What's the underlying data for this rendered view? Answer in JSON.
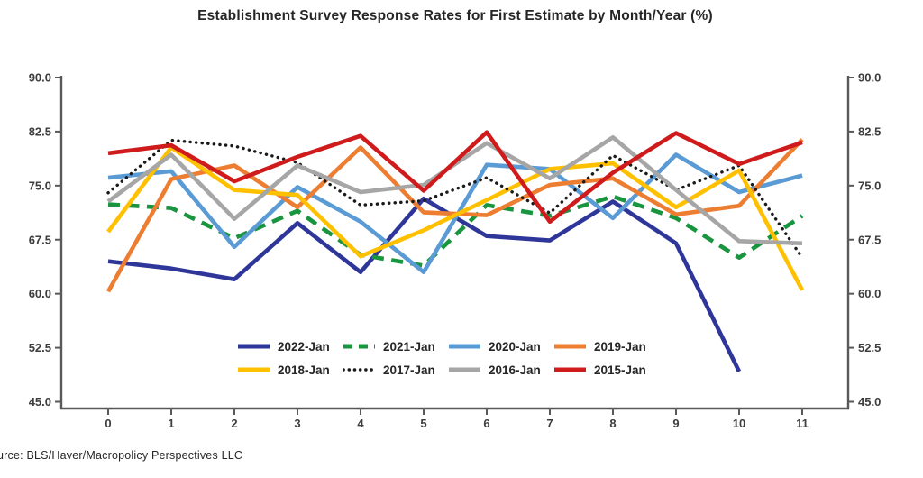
{
  "title": "Establishment Survey Response Rates for First Estimate by Month/Year (%)",
  "source_note": "urce:  BLS/Haver/Macropolicy Perspectives LLC",
  "chart_data": {
    "type": "line",
    "x": [
      0,
      1,
      2,
      3,
      4,
      5,
      6,
      7,
      8,
      9,
      10,
      11
    ],
    "x_tick_labels": [
      "0",
      "1",
      "2",
      "3",
      "4",
      "5",
      "6",
      "7",
      "8",
      "9",
      "10",
      "11"
    ],
    "y_ticks": [
      90.0,
      82.5,
      75.0,
      67.5,
      60.0,
      52.5,
      45.0
    ],
    "y_tick_labels": [
      "90.0",
      "82.5",
      "75.0",
      "67.5",
      "60.0",
      "52.5",
      "45.0"
    ],
    "ylim": [
      45.0,
      90.0
    ],
    "grid": false,
    "legend_position": "bottom-center-inside",
    "axis_color": "#595959",
    "tick_label_color": "#3d3d3d",
    "series": [
      {
        "name": "2022-Jan",
        "color": "#2f3699",
        "style": "solid",
        "values": [
          64.5,
          63.5,
          62.0,
          69.8,
          63.0,
          73.2,
          68.0,
          67.4,
          72.8,
          67.0,
          49.2,
          null
        ]
      },
      {
        "name": "2021-Jan",
        "color": "#18953e",
        "style": "dashed",
        "values": [
          72.4,
          71.9,
          67.7,
          71.5,
          65.4,
          63.9,
          72.3,
          70.8,
          73.5,
          70.5,
          65.0,
          70.8
        ]
      },
      {
        "name": "2020-Jan",
        "color": "#5b9bd5",
        "style": "solid",
        "values": [
          76.1,
          77.0,
          66.5,
          74.8,
          70.0,
          63.0,
          77.9,
          77.3,
          70.5,
          79.3,
          74.1,
          76.4
        ]
      },
      {
        "name": "2019-Jan",
        "color": "#ed7d31",
        "style": "solid",
        "values": [
          60.3,
          75.9,
          77.8,
          72.0,
          80.3,
          71.3,
          70.9,
          75.1,
          76.0,
          71.0,
          72.2,
          81.4
        ]
      },
      {
        "name": "2018-Jan",
        "color": "#ffc000",
        "style": "solid",
        "values": [
          68.6,
          80.3,
          74.4,
          73.7,
          65.2,
          68.8,
          73.0,
          77.3,
          78.1,
          72.0,
          77.1,
          60.5
        ]
      },
      {
        "name": "2017-Jan",
        "color": "#1a1a1a",
        "style": "dotted",
        "values": [
          74.0,
          81.3,
          80.5,
          78.2,
          72.3,
          72.9,
          76.1,
          71.2,
          79.2,
          74.4,
          77.8,
          65.0
        ]
      },
      {
        "name": "2016-Jan",
        "color": "#a6a6a6",
        "style": "solid",
        "values": [
          72.8,
          79.3,
          70.4,
          77.8,
          74.1,
          75.1,
          80.9,
          76.0,
          81.7,
          74.4,
          67.3,
          67.0
        ]
      },
      {
        "name": "2015-Jan",
        "color": "#cf1b1b",
        "style": "solid",
        "values": [
          79.5,
          80.6,
          75.6,
          79.0,
          81.9,
          74.3,
          82.4,
          70.0,
          76.8,
          82.3,
          78.0,
          81.0
        ]
      }
    ]
  }
}
